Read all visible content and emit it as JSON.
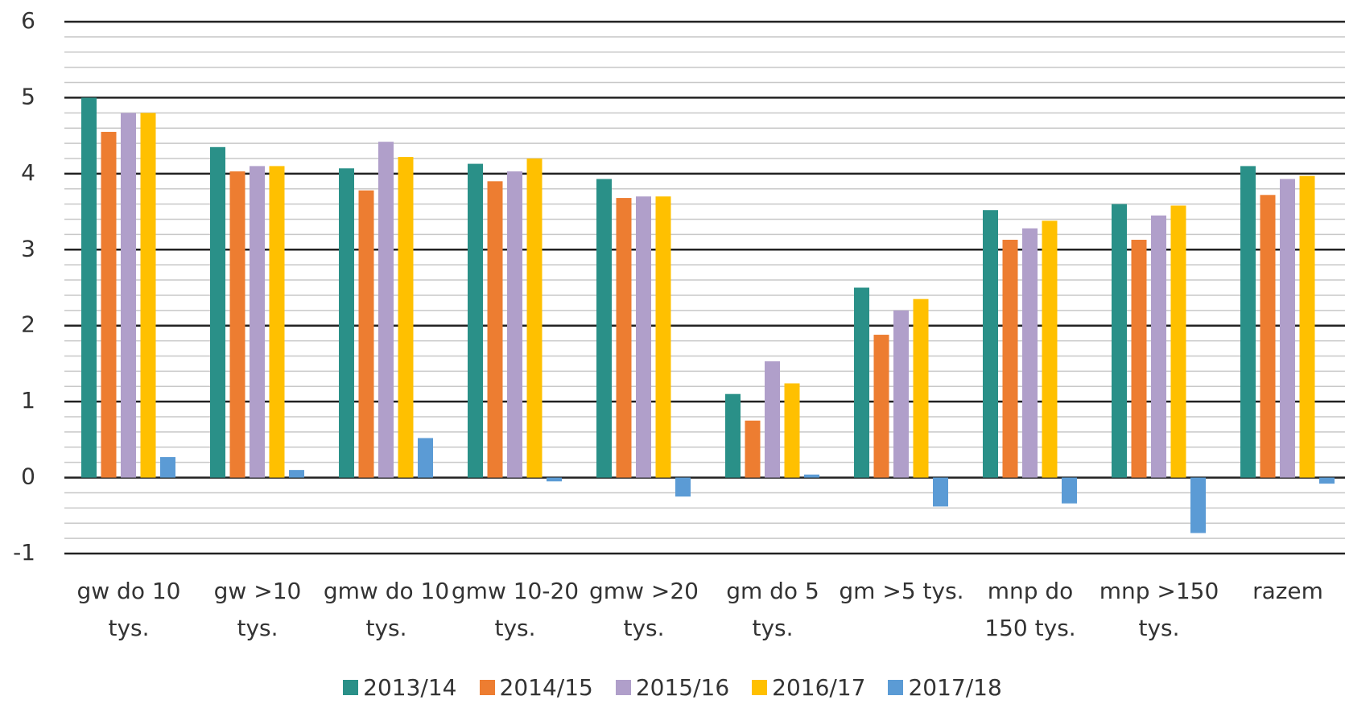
{
  "chart_data": {
    "type": "bar",
    "categories": [
      "gw do 10 tys.",
      "gw >10 tys.",
      "gmw do 10 tys.",
      "gmw 10-20 tys.",
      "gmw >20 tys.",
      "gm do 5 tys.",
      "gm >5 tys.",
      "mnp do 150 tys.",
      "mnp >150 tys.",
      "razem"
    ],
    "series": [
      {
        "name": "2013/14",
        "color": "#2a9088",
        "values": [
          5.0,
          4.35,
          4.07,
          4.13,
          3.93,
          1.1,
          2.5,
          3.52,
          3.6,
          4.1
        ]
      },
      {
        "name": "2014/15",
        "color": "#ed7d31",
        "values": [
          4.55,
          4.03,
          3.78,
          3.9,
          3.68,
          0.75,
          1.88,
          3.13,
          3.13,
          3.72
        ]
      },
      {
        "name": "2015/16",
        "color": "#b09fca",
        "values": [
          4.8,
          4.1,
          4.42,
          4.03,
          3.7,
          1.53,
          2.2,
          3.28,
          3.45,
          3.93
        ]
      },
      {
        "name": "2016/17",
        "color": "#ffc000",
        "values": [
          4.8,
          4.1,
          4.22,
          4.2,
          3.7,
          1.24,
          2.35,
          3.38,
          3.58,
          3.97
        ]
      },
      {
        "name": "2017/18",
        "color": "#5b9bd5",
        "values": [
          0.27,
          0.1,
          0.52,
          -0.05,
          -0.25,
          0.04,
          -0.38,
          -0.34,
          -0.73,
          -0.08
        ]
      }
    ],
    "ylim": [
      -1,
      6
    ],
    "yticks": [
      -1,
      0,
      1,
      2,
      3,
      4,
      5,
      6
    ],
    "grid": true,
    "minor_grid_step": 0.2,
    "legend": "bottom"
  }
}
